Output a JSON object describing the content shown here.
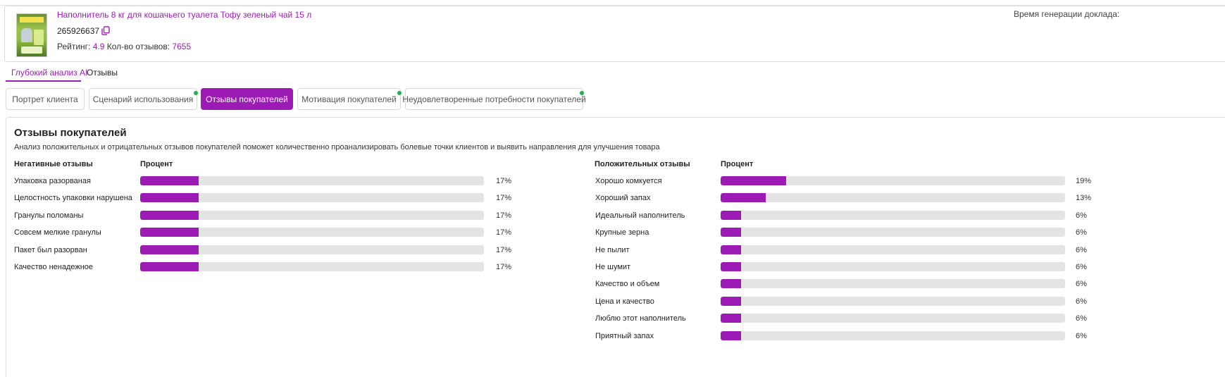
{
  "product": {
    "title": "Наполнитель 8 кг для кошачьего туалета Тофу зеленый чай 15 л",
    "id": "265926637",
    "rating_label": "Рейтинг:",
    "rating_value": "4.9",
    "reviews_label": "Кол-во отзывов:",
    "reviews_value": "7655",
    "generation_label": "Время генерации доклада:"
  },
  "main_tabs": [
    {
      "label": "Глубокий анализ AI",
      "active": true
    },
    {
      "label": "Отзывы",
      "active": false
    }
  ],
  "sub_tabs": [
    {
      "label": "Портрет клиента",
      "active": false,
      "dot": false
    },
    {
      "label": "Сценарий использования",
      "active": false,
      "dot": true
    },
    {
      "label": "Отзывы покупателей",
      "active": true,
      "dot": false
    },
    {
      "label": "Мотивация покупателей",
      "active": false,
      "dot": true
    },
    {
      "label": "Неудовлетворенные потребности покупателей",
      "active": false,
      "dot": true
    }
  ],
  "report": {
    "title": "Отзывы покупателей",
    "description": "Анализ положительных и отрицательных отзывов покупателей поможет количественно проанализировать болевые точки клиентов и выявить направления для улучшения товара",
    "negative": {
      "header": "Негативные отзывы",
      "percent_header": "Процент",
      "items": [
        {
          "label": "Упаковка разорваная",
          "percent": 17,
          "percent_text": "17%"
        },
        {
          "label": "Целостность упаковки нарушена",
          "percent": 17,
          "percent_text": "17%"
        },
        {
          "label": "Гранулы поломаны",
          "percent": 17,
          "percent_text": "17%"
        },
        {
          "label": "Совсем мелкие гранулы",
          "percent": 17,
          "percent_text": "17%"
        },
        {
          "label": "Пакет был разорван",
          "percent": 17,
          "percent_text": "17%"
        },
        {
          "label": "Качество ненадежное",
          "percent": 17,
          "percent_text": "17%"
        }
      ]
    },
    "positive": {
      "header": "Положительных отзывы",
      "percent_header": "Процент",
      "items": [
        {
          "label": "Хорошо комкуется",
          "percent": 19,
          "percent_text": "19%"
        },
        {
          "label": "Хороший запах",
          "percent": 13,
          "percent_text": "13%"
        },
        {
          "label": "Идеальный наполнитель",
          "percent": 6,
          "percent_text": "6%"
        },
        {
          "label": "Крупные зерна",
          "percent": 6,
          "percent_text": "6%"
        },
        {
          "label": "Не пылит",
          "percent": 6,
          "percent_text": "6%"
        },
        {
          "label": "Не шумит",
          "percent": 6,
          "percent_text": "6%"
        },
        {
          "label": "Качество и объем",
          "percent": 6,
          "percent_text": "6%"
        },
        {
          "label": "Цена и качество",
          "percent": 6,
          "percent_text": "6%"
        },
        {
          "label": "Люблю этот наполнитель",
          "percent": 6,
          "percent_text": "6%"
        },
        {
          "label": "Приятный запах",
          "percent": 6,
          "percent_text": "6%"
        }
      ]
    }
  },
  "colors": {
    "accent": "#9c1bb5",
    "bar_track": "#e4e4e4",
    "status_dot": "#22b04b"
  }
}
